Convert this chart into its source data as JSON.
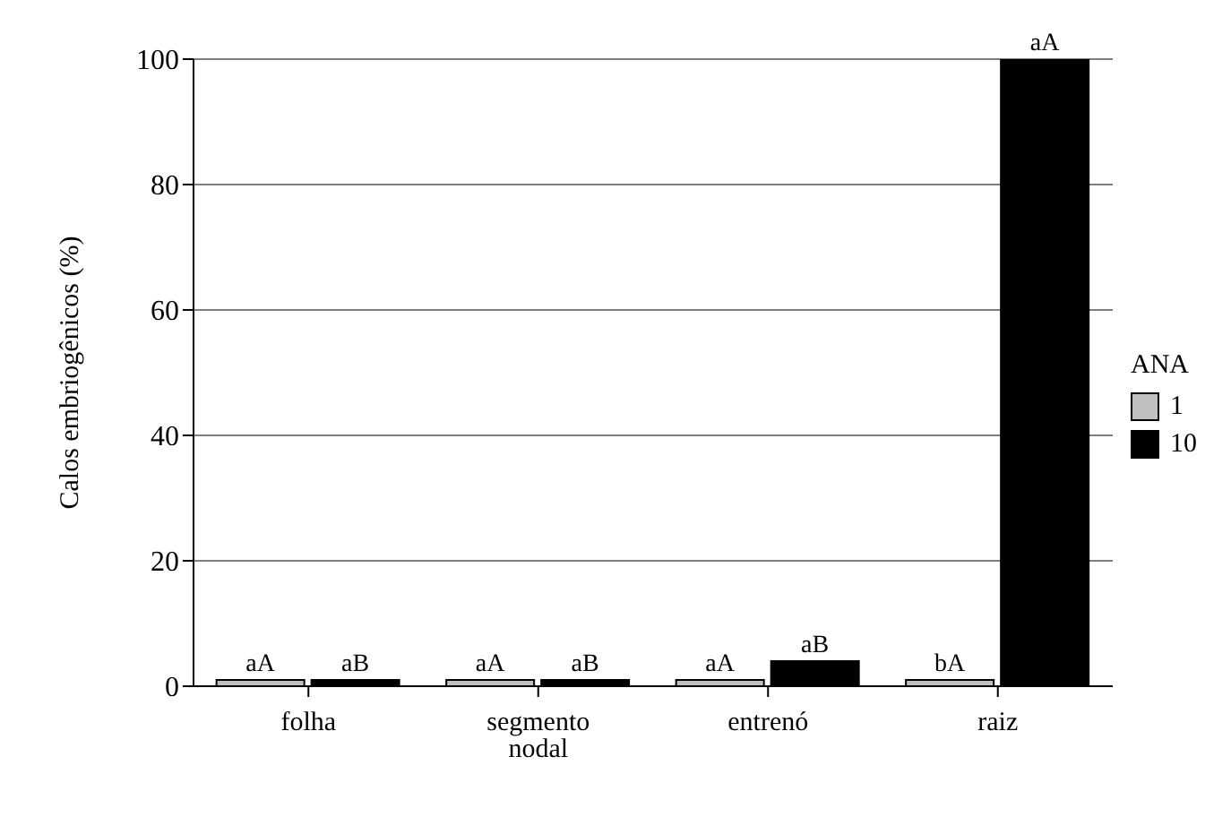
{
  "chart_data": {
    "type": "bar",
    "ylabel": "Calos embriogênicos (%)",
    "legend_title": "ANA",
    "categories": [
      "folha",
      "segmento nodal",
      "entrenó",
      "raiz"
    ],
    "series": [
      {
        "name": "1",
        "color": "#c0c0c0",
        "values": [
          1,
          1,
          1,
          1
        ],
        "value_labels": [
          "aA",
          "aA",
          "aA",
          "bA"
        ]
      },
      {
        "name": "10",
        "color": "#000000",
        "values": [
          1,
          1,
          4,
          100
        ],
        "value_labels": [
          "aB",
          "aB",
          "aB",
          "aA"
        ]
      }
    ],
    "ylim": [
      0,
      100
    ],
    "yticks": [
      0,
      20,
      40,
      60,
      80,
      100
    ],
    "grid": "y",
    "legend": "right"
  }
}
